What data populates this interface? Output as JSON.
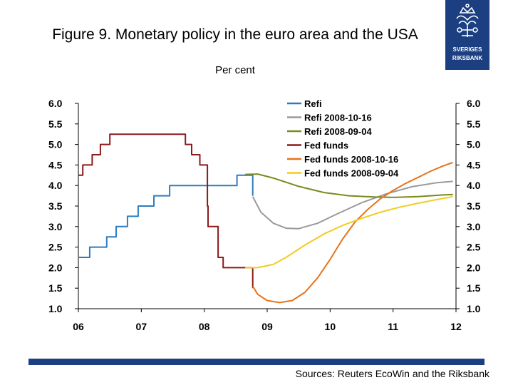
{
  "header": {
    "title": "Figure 9. Monetary policy in the euro area and the USA",
    "subtitle": "Per cent",
    "logo_text": [
      "SVERIGES",
      "RIKSBANK"
    ]
  },
  "footer": {
    "source": "Sources: Reuters EcoWin and the Riksbank"
  },
  "colors": {
    "brand_blue": "#1b3f80"
  },
  "chart_data": {
    "type": "line",
    "title": "Figure 9. Monetary policy in the euro area and the USA",
    "ylabel": "Per cent",
    "xlabel": "",
    "xlim": [
      2006.0,
      2012.0
    ],
    "ylim": [
      1.0,
      6.0
    ],
    "x_ticks": [
      {
        "v": 2006.0,
        "label": "06"
      },
      {
        "v": 2007.0,
        "label": "07"
      },
      {
        "v": 2008.0,
        "label": "08"
      },
      {
        "v": 2009.0,
        "label": "09"
      },
      {
        "v": 2010.0,
        "label": "10"
      },
      {
        "v": 2011.0,
        "label": "11"
      },
      {
        "v": 2012.0,
        "label": "12"
      }
    ],
    "y_ticks": [
      {
        "v": 1.0,
        "label": "1.0"
      },
      {
        "v": 1.5,
        "label": "1.5"
      },
      {
        "v": 2.0,
        "label": "2.0"
      },
      {
        "v": 2.5,
        "label": "2.5"
      },
      {
        "v": 3.0,
        "label": "3.0"
      },
      {
        "v": 3.5,
        "label": "3.5"
      },
      {
        "v": 4.0,
        "label": "4.0"
      },
      {
        "v": 4.5,
        "label": "4.5"
      },
      {
        "v": 5.0,
        "label": "5.0"
      },
      {
        "v": 5.5,
        "label": "5.5"
      },
      {
        "v": 6.0,
        "label": "6.0"
      }
    ],
    "grid": false,
    "legend_position": "top-right",
    "series": [
      {
        "name": "Refi",
        "color": "#2e7cc0",
        "step": true,
        "points": [
          [
            2006.0,
            2.25
          ],
          [
            2006.18,
            2.5
          ],
          [
            2006.45,
            2.75
          ],
          [
            2006.6,
            3.0
          ],
          [
            2006.78,
            3.25
          ],
          [
            2006.95,
            3.5
          ],
          [
            2007.2,
            3.75
          ],
          [
            2007.45,
            4.0
          ],
          [
            2008.52,
            4.25
          ],
          [
            2008.77,
            4.25
          ],
          [
            2008.77,
            3.75
          ]
        ]
      },
      {
        "name": "Refi  2008-10-16",
        "color": "#9a9a9a",
        "step": false,
        "points": [
          [
            2008.77,
            3.73
          ],
          [
            2008.9,
            3.35
          ],
          [
            2009.1,
            3.08
          ],
          [
            2009.3,
            2.96
          ],
          [
            2009.5,
            2.95
          ],
          [
            2009.8,
            3.08
          ],
          [
            2010.1,
            3.3
          ],
          [
            2010.5,
            3.58
          ],
          [
            2010.9,
            3.8
          ],
          [
            2011.3,
            3.97
          ],
          [
            2011.7,
            4.07
          ],
          [
            2011.95,
            4.1
          ]
        ]
      },
      {
        "name": "Refi  2008-09-04",
        "color": "#7a8a1e",
        "step": false,
        "points": [
          [
            2008.65,
            4.27
          ],
          [
            2008.85,
            4.28
          ],
          [
            2009.1,
            4.18
          ],
          [
            2009.5,
            3.98
          ],
          [
            2009.9,
            3.83
          ],
          [
            2010.3,
            3.75
          ],
          [
            2010.7,
            3.72
          ],
          [
            2011.0,
            3.71
          ],
          [
            2011.4,
            3.73
          ],
          [
            2011.8,
            3.77
          ],
          [
            2011.95,
            3.78
          ]
        ]
      },
      {
        "name": "Fed funds",
        "color": "#8b1a1a",
        "step": true,
        "points": [
          [
            2006.0,
            4.25
          ],
          [
            2006.07,
            4.5
          ],
          [
            2006.22,
            4.75
          ],
          [
            2006.35,
            5.0
          ],
          [
            2006.5,
            5.25
          ],
          [
            2007.7,
            5.25
          ],
          [
            2007.7,
            5.0
          ],
          [
            2007.8,
            4.75
          ],
          [
            2007.93,
            4.5
          ],
          [
            2008.05,
            3.5
          ],
          [
            2008.06,
            3.0
          ],
          [
            2008.18,
            3.0
          ],
          [
            2008.22,
            2.25
          ],
          [
            2008.3,
            2.0
          ],
          [
            2008.77,
            2.0
          ],
          [
            2008.77,
            1.5
          ]
        ]
      },
      {
        "name": "Fed funds  2008-10-16",
        "color": "#e8731a",
        "step": false,
        "points": [
          [
            2008.77,
            1.55
          ],
          [
            2008.85,
            1.35
          ],
          [
            2009.0,
            1.2
          ],
          [
            2009.2,
            1.15
          ],
          [
            2009.4,
            1.2
          ],
          [
            2009.6,
            1.4
          ],
          [
            2009.8,
            1.75
          ],
          [
            2010.0,
            2.2
          ],
          [
            2010.2,
            2.7
          ],
          [
            2010.4,
            3.12
          ],
          [
            2010.6,
            3.42
          ],
          [
            2010.8,
            3.68
          ],
          [
            2011.0,
            3.88
          ],
          [
            2011.2,
            4.05
          ],
          [
            2011.4,
            4.2
          ],
          [
            2011.6,
            4.35
          ],
          [
            2011.8,
            4.48
          ],
          [
            2011.95,
            4.56
          ]
        ]
      },
      {
        "name": "Fed funds  2008-09-04",
        "color": "#f2cc1e",
        "step": false,
        "points": [
          [
            2008.65,
            2.0
          ],
          [
            2008.85,
            2.0
          ],
          [
            2009.1,
            2.08
          ],
          [
            2009.3,
            2.25
          ],
          [
            2009.6,
            2.55
          ],
          [
            2009.9,
            2.82
          ],
          [
            2010.2,
            3.03
          ],
          [
            2010.5,
            3.2
          ],
          [
            2010.8,
            3.35
          ],
          [
            2011.1,
            3.47
          ],
          [
            2011.4,
            3.57
          ],
          [
            2011.7,
            3.66
          ],
          [
            2011.95,
            3.73
          ]
        ]
      }
    ]
  }
}
